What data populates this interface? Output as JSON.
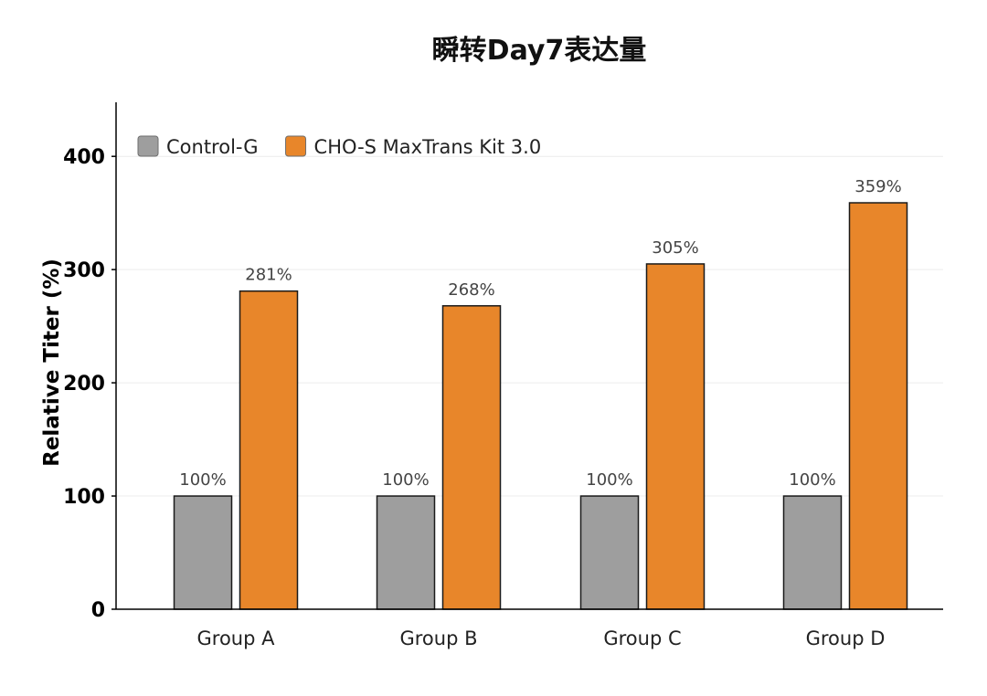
{
  "chart_data": {
    "type": "bar",
    "title": "瞬转Day7表达量",
    "xlabel": "",
    "ylabel": "Relative Titer (%)",
    "categories": [
      "Group A",
      "Group B",
      "Group C",
      "Group D"
    ],
    "series": [
      {
        "name": "Control-G",
        "color": "#9e9e9e",
        "values": [
          100,
          100,
          100,
          100
        ],
        "labels": [
          "100%",
          "100%",
          "100%",
          "100%"
        ]
      },
      {
        "name": "CHO-S MaxTrans Kit 3.0",
        "color": "#e8862a",
        "values": [
          281,
          268,
          305,
          359
        ],
        "labels": [
          "281%",
          "268%",
          "305%",
          "359%"
        ]
      }
    ],
    "ylim": [
      0,
      440
    ],
    "yticks": [
      0,
      100,
      200,
      300,
      400
    ],
    "grid": true,
    "legend": "top-left"
  }
}
